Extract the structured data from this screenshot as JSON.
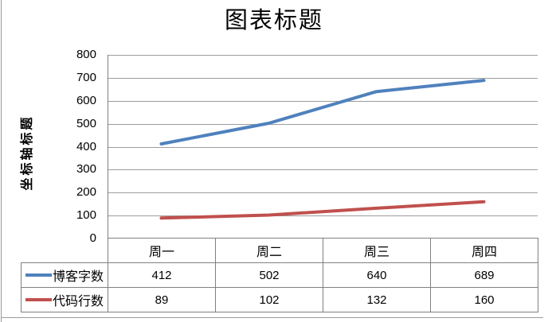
{
  "chart": {
    "title": "图表标题",
    "y_axis_title": "坐标轴标题"
  },
  "chart_data": {
    "type": "line",
    "title": "图表标题",
    "ylabel": "坐标轴标题",
    "xlabel": "",
    "categories": [
      "周一",
      "周二",
      "周三",
      "周四"
    ],
    "series": [
      {
        "name": "博客字数",
        "values": [
          412,
          502,
          640,
          689
        ],
        "color": "#4F81BD"
      },
      {
        "name": "代码行数",
        "values": [
          89,
          102,
          132,
          160
        ],
        "color": "#C0504D"
      }
    ],
    "ylim": [
      0,
      800
    ],
    "ytick_step": 100,
    "grid": true,
    "legend_position": "data-table-left",
    "data_table": true
  },
  "colors": {
    "series1": "#4F81BD",
    "series2": "#C0504D",
    "gridline": "#9c9c9c",
    "axis_line": "#808080",
    "table_border": "#808080",
    "outer_border": "#9b9b9b",
    "background": "#ffffff",
    "text": "#000000"
  }
}
